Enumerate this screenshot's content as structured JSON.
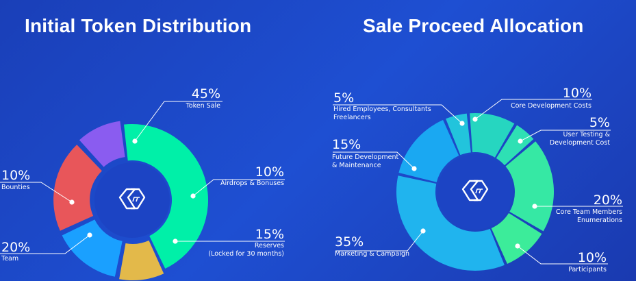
{
  "chart_data": [
    {
      "type": "pie",
      "title": "Initial Token Distribution",
      "categories": [
        "Token Sale",
        "Airdrops & Bonuses",
        "Reserves (Locked for 30 months)",
        "Team",
        "Bounties"
      ],
      "values": [
        45,
        10,
        15,
        20,
        10
      ],
      "colors": [
        "#00f0a8",
        "#e3b94a",
        "#1aa0ff",
        "#e8565a",
        "#8a5cf0"
      ],
      "slices": [
        {
          "pct": "45%",
          "lines": [
            "Token Sale"
          ]
        },
        {
          "pct": "10%",
          "lines": [
            "Airdrops & Bonuses"
          ]
        },
        {
          "pct": "15%",
          "lines": [
            "Reserves",
            "(Locked for 30 months)"
          ]
        },
        {
          "pct": "20%",
          "lines": [
            "Team"
          ]
        },
        {
          "pct": "10%",
          "lines": [
            "Bounties"
          ]
        }
      ]
    },
    {
      "type": "pie",
      "title": "Sale Proceed Allocation",
      "categories": [
        "Core Development Costs",
        "User Testing & Development Cost",
        "Core Team Members Enumerations",
        "Participants",
        "Marketing & Campaign",
        "Future Development & Maintenance",
        "Hired Employees, Consultants Freelancers"
      ],
      "values": [
        10,
        5,
        20,
        10,
        35,
        15,
        5
      ],
      "colors": [
        "#26d6c0",
        "#2ee0b4",
        "#36e8a4",
        "#3cec9a",
        "#20b4ee",
        "#1aa8f2",
        "#22c4dc"
      ],
      "slices": [
        {
          "pct": "10%",
          "lines": [
            "Core Development Costs"
          ]
        },
        {
          "pct": "5%",
          "lines": [
            "User Testing &",
            "Development Cost"
          ]
        },
        {
          "pct": "20%",
          "lines": [
            "Core Team Members",
            "Enumerations"
          ]
        },
        {
          "pct": "10%",
          "lines": [
            "Participants"
          ]
        },
        {
          "pct": "35%",
          "lines": [
            "Marketing & Campaign"
          ]
        },
        {
          "pct": "15%",
          "lines": [
            "Future Development",
            "& Maintenance"
          ]
        },
        {
          "pct": "5%",
          "lines": [
            "Hired Employees, Consultants",
            "Freelancers"
          ]
        }
      ]
    }
  ]
}
